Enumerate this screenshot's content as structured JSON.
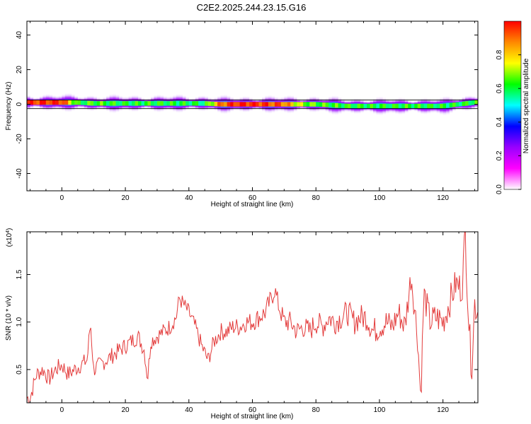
{
  "figure": {
    "title": "C2E2.2025.244.23.15.G16"
  },
  "chart_data": [
    {
      "type": "heatmap",
      "xlabel": "Height of straight line (km)",
      "ylabel": "Frequency (Hz)",
      "xlim": [
        -11,
        131
      ],
      "ylim": [
        -50,
        48
      ],
      "xticks": [
        0,
        20,
        40,
        60,
        80,
        100,
        120
      ],
      "yticks": [
        -40,
        -20,
        0,
        20,
        40
      ],
      "colorbar": {
        "label": "Normalized spectral amplitude",
        "range": [
          0.0,
          1.0
        ],
        "ticks": [
          0.0,
          0.2,
          0.4,
          0.6,
          0.8
        ],
        "colors": [
          "#ffffff",
          "#ff00ff",
          "#9900ff",
          "#0000ff",
          "#00ffff",
          "#00ff00",
          "#ffff00",
          "#ff8800",
          "#ff0000"
        ]
      },
      "reference_lines_hz": [
        2.5,
        -2.5
      ],
      "band_profile": {
        "x": [
          -10,
          0,
          5,
          10,
          20,
          30,
          40,
          45,
          50,
          55,
          60,
          70,
          75,
          80,
          90,
          100,
          110,
          120,
          125,
          130
        ],
        "center_hz": [
          1,
          1,
          1,
          0.5,
          0.5,
          0.5,
          0.5,
          0.5,
          0,
          0,
          0,
          0,
          0,
          0,
          -1,
          -1,
          -1,
          -1,
          0,
          1
        ],
        "peak_amplitude": [
          0.95,
          0.97,
          0.6,
          0.65,
          0.6,
          0.62,
          0.6,
          0.58,
          0.9,
          0.97,
          0.97,
          0.9,
          0.7,
          0.65,
          0.62,
          0.6,
          0.62,
          0.6,
          0.6,
          0.62
        ]
      }
    },
    {
      "type": "line",
      "xlabel": "Height of straight line (km)",
      "ylabel": "SNR (10 * v/v)",
      "scale_label": "(x10",
      "scale_exponent": "4",
      "scale_suffix": ")",
      "xlim": [
        -11,
        131
      ],
      "ylim": [
        0.15,
        1.95
      ],
      "xticks": [
        0,
        20,
        40,
        60,
        80,
        100,
        120
      ],
      "yticks": [
        0.5,
        1.0,
        1.5
      ],
      "ytick_labels": [
        "0.5",
        "1.0",
        "1.5"
      ],
      "color": "#e33b3b",
      "series": [
        {
          "x": [
            -10,
            -8,
            -6,
            -4,
            -2,
            0,
            2,
            4,
            6,
            8,
            9,
            10,
            12,
            14,
            16,
            18,
            20,
            22,
            24,
            26,
            27,
            28,
            30,
            32,
            34,
            36,
            37,
            38,
            40,
            42,
            44,
            46,
            48,
            50,
            52,
            54,
            56,
            58,
            60,
            62,
            64,
            66,
            67,
            68,
            70,
            72,
            74,
            76,
            78,
            80,
            82,
            84,
            86,
            88,
            90,
            92,
            94,
            96,
            98,
            100,
            102,
            104,
            106,
            108,
            110,
            112,
            113,
            114,
            116,
            118,
            120,
            122,
            124,
            126,
            127,
            128,
            129,
            130,
            131
          ],
          "y": [
            0.2,
            0.45,
            0.5,
            0.4,
            0.5,
            0.55,
            0.45,
            0.5,
            0.55,
            0.6,
            1.0,
            0.5,
            0.55,
            0.6,
            0.65,
            0.7,
            0.75,
            0.8,
            0.85,
            0.7,
            0.4,
            0.8,
            0.85,
            0.9,
            0.95,
            1.05,
            1.25,
            1.2,
            1.1,
            0.95,
            0.75,
            0.6,
            0.8,
            0.9,
            0.9,
            0.95,
            0.95,
            1.0,
            1.0,
            1.05,
            1.1,
            1.25,
            1.35,
            1.2,
            1.0,
            1.0,
            0.9,
            0.95,
            0.9,
            1.0,
            0.95,
            1.05,
            1.0,
            1.05,
            1.1,
            1.0,
            1.05,
            1.05,
            0.9,
            0.95,
            1.0,
            0.95,
            1.1,
            0.95,
            1.5,
            0.85,
            0.2,
            1.3,
            1.0,
            1.05,
            1.0,
            1.2,
            1.4,
            1.35,
            1.95,
            1.1,
            0.5,
            1.2,
            1.1
          ]
        }
      ]
    }
  ]
}
